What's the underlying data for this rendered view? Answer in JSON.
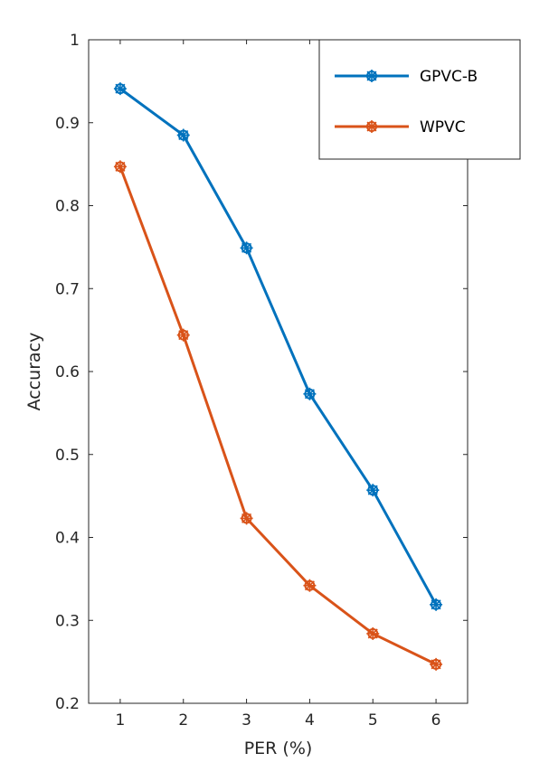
{
  "chart_data": {
    "type": "line",
    "x": [
      1,
      2,
      3,
      4,
      5,
      6
    ],
    "xticks": [
      "1",
      "2",
      "3",
      "4",
      "5",
      "6"
    ],
    "yticks": [
      "0.2",
      "0.3",
      "0.4",
      "0.5",
      "0.6",
      "0.7",
      "0.8",
      "0.9",
      "1"
    ],
    "xlim": [
      0.5,
      6.5
    ],
    "ylim": [
      0.2,
      1.0
    ],
    "xlabel": "PER (%)",
    "ylabel": "Accuracy",
    "grid": false,
    "legend_position": "top-right",
    "series": [
      {
        "name": "GPVC-B",
        "color": "#0072BD",
        "values": [
          0.941,
          0.885,
          0.749,
          0.573,
          0.457,
          0.319
        ]
      },
      {
        "name": "WPVC",
        "color": "#D95319",
        "values": [
          0.847,
          0.644,
          0.423,
          0.342,
          0.284,
          0.247
        ]
      }
    ],
    "marker": "circle-star"
  }
}
